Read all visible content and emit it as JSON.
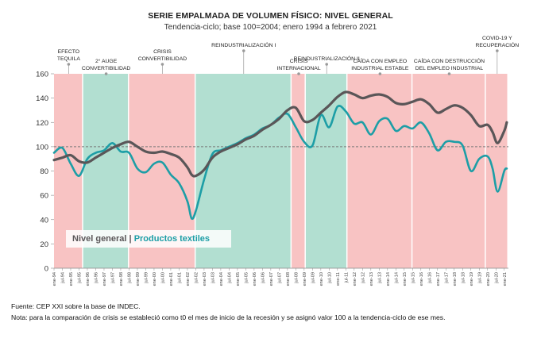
{
  "chart_data": {
    "type": "line",
    "title": "SERIE EMPALMADA DE VOLUMEN FÍSICO: NIVEL GENERAL",
    "subtitle": "Tendencia-ciclo; base 100=2004; enero 1994 a febrero 2021",
    "ylim": [
      0,
      160
    ],
    "yticks": [
      0,
      20,
      40,
      60,
      80,
      100,
      120,
      140,
      160
    ],
    "reference_line": 100,
    "x_start": "1994-01",
    "x_end": "2021-02",
    "xtick_labels": [
      "ene-94",
      "jul-94",
      "ene-95",
      "jul-95",
      "ene-96",
      "jul-96",
      "ene-97",
      "jul-97",
      "ene-98",
      "jul-98",
      "ene-99",
      "jul-99",
      "ene-00",
      "jul-00",
      "ene-01",
      "jul-01",
      "ene-02",
      "jul-02",
      "ene-03",
      "jul-03",
      "ene-04",
      "jul-04",
      "ene-05",
      "jul-05",
      "ene-06",
      "jul-06",
      "ene-07",
      "jul-07",
      "ene-08",
      "jul-08",
      "ene-09",
      "jul-09",
      "ene-10",
      "jul-10",
      "ene-11",
      "jul-11",
      "ene-12",
      "jul-12",
      "ene-13",
      "jul-13",
      "ene-14",
      "jul-14",
      "ene-15",
      "jul-15",
      "ene-16",
      "jul-16",
      "ene-17",
      "jul-17",
      "ene-18",
      "jul-18",
      "ene-19",
      "jul-19",
      "ene-20",
      "jul-20",
      "ene-21"
    ],
    "periods": [
      {
        "start": 1994.0,
        "end": 1995.75,
        "color": "#f8c3c3",
        "label": "EFECTO\nTEQUILA",
        "label_row": 1
      },
      {
        "start": 1995.75,
        "end": 1998.5,
        "color": "#b2dfd1",
        "label": "2° AUGE\nCONVERTIBILIDAD",
        "label_row": 2
      },
      {
        "start": 1998.5,
        "end": 2002.5,
        "color": "#f8c3c3",
        "label": "CRISIS\nCONVERTIBILIDAD",
        "label_row": 1
      },
      {
        "start": 2002.5,
        "end": 2008.25,
        "color": "#b2dfd1",
        "label": "REINDUSTRIALIZACIÓN I",
        "label_row": 0
      },
      {
        "start": 2008.25,
        "end": 2009.1,
        "color": "#f8c3c3",
        "label": "CRISIS\nINTERNACIONAL",
        "label_row": 2
      },
      {
        "start": 2009.1,
        "end": 2011.6,
        "color": "#b2dfd1",
        "label": "REINDUSTRIALIZACIÓN II",
        "label_row": 1
      },
      {
        "start": 2011.6,
        "end": 2015.5,
        "color": "#f8c3c3",
        "label": "CAÍDA CON EMPLEO\nINDUSTRIAL ESTABLE",
        "label_row": 2
      },
      {
        "start": 2015.5,
        "end": 2019.9,
        "color": "#f8c3c3",
        "label": "CAÍDA CON DESTRUCCIÓN\nDEL EMPLEO INDUSTRIAL",
        "label_row": 2
      },
      {
        "start": 2019.9,
        "end": 2021.25,
        "color": "#f8c3c3",
        "label": "COVID-19 Y\nRECUPERACIÓN",
        "label_row": 0
      }
    ],
    "series": [
      {
        "name": "Nivel general",
        "color": "#5a5658",
        "x": [
          1994.0,
          1994.5,
          1995.0,
          1995.5,
          1996.0,
          1996.5,
          1997.0,
          1997.5,
          1998.0,
          1998.5,
          1999.0,
          1999.5,
          2000.0,
          2000.5,
          2001.0,
          2001.5,
          2002.0,
          2002.25,
          2002.5,
          2003.0,
          2003.5,
          2004.0,
          2004.5,
          2005.0,
          2005.5,
          2006.0,
          2006.5,
          2007.0,
          2007.5,
          2008.0,
          2008.5,
          2009.0,
          2009.5,
          2010.0,
          2010.5,
          2011.0,
          2011.5,
          2012.0,
          2012.5,
          2013.0,
          2013.5,
          2014.0,
          2014.5,
          2015.0,
          2015.5,
          2016.0,
          2016.5,
          2017.0,
          2017.5,
          2018.0,
          2018.5,
          2019.0,
          2019.5,
          2020.0,
          2020.3,
          2020.6,
          2021.0,
          2021.15
        ],
        "values": [
          89,
          91,
          93,
          88,
          87,
          91,
          95,
          99,
          102,
          104,
          100,
          96,
          95,
          96,
          94,
          91,
          83,
          77,
          76,
          81,
          91,
          96,
          99,
          102,
          106,
          109,
          114,
          118,
          123,
          130,
          132,
          121,
          122,
          128,
          134,
          141,
          145,
          143,
          140,
          142,
          143,
          141,
          136,
          135,
          137,
          139,
          135,
          128,
          131,
          134,
          132,
          126,
          117,
          118,
          112,
          103,
          113,
          120
        ]
      },
      {
        "name": "Productos textiles",
        "color": "#1d9ea6",
        "x": [
          1994.0,
          1994.5,
          1995.0,
          1995.5,
          1996.0,
          1996.5,
          1997.0,
          1997.5,
          1998.0,
          1998.5,
          1999.0,
          1999.5,
          2000.0,
          2000.5,
          2001.0,
          2001.5,
          2002.0,
          2002.25,
          2002.5,
          2003.0,
          2003.5,
          2004.0,
          2004.5,
          2005.0,
          2005.5,
          2006.0,
          2006.5,
          2007.0,
          2007.5,
          2008.0,
          2008.5,
          2009.0,
          2009.5,
          2010.0,
          2010.5,
          2011.0,
          2011.5,
          2012.0,
          2012.5,
          2013.0,
          2013.5,
          2014.0,
          2014.5,
          2015.0,
          2015.5,
          2016.0,
          2016.5,
          2017.0,
          2017.5,
          2018.0,
          2018.5,
          2019.0,
          2019.5,
          2020.0,
          2020.3,
          2020.6,
          2021.0,
          2021.15
        ],
        "values": [
          95,
          99,
          86,
          76,
          90,
          95,
          97,
          103,
          96,
          95,
          82,
          79,
          86,
          87,
          77,
          70,
          55,
          41,
          47,
          73,
          94,
          97,
          100,
          103,
          107,
          110,
          115,
          118,
          124,
          127,
          116,
          104,
          101,
          126,
          116,
          133,
          129,
          119,
          120,
          110,
          121,
          123,
          113,
          117,
          115,
          120,
          111,
          97,
          104,
          104,
          101,
          80,
          90,
          92,
          82,
          63,
          80,
          82
        ]
      }
    ]
  },
  "legend": {
    "series_a": "Nivel general",
    "separator": "|",
    "series_b": "Productos textiles"
  },
  "footnotes": {
    "source": "Fuente: CEP XXI sobre la base de INDEC.",
    "note": "Nota: para la comparación de crisis se estableció como t0 el mes de inicio de la recesión y se asignó valor 100 a la tendencia-ciclo de ese mes."
  }
}
